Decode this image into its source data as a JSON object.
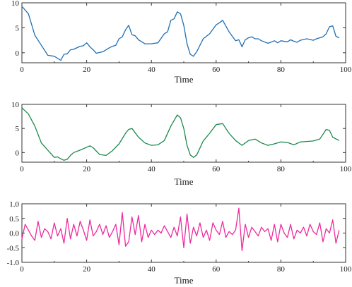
{
  "chart_data": [
    {
      "type": "line",
      "xlabel": "Time",
      "ylabel": "",
      "xlim": [
        0,
        100
      ],
      "ylim": [
        -2,
        10
      ],
      "xticks": [
        0,
        20,
        40,
        60,
        80,
        100
      ],
      "yticks": [
        0,
        5,
        10
      ],
      "x_tick_labels": [
        "0",
        "20",
        "40",
        "60",
        "80",
        "100"
      ],
      "y_tick_labels": [
        "0",
        "5",
        "10"
      ],
      "grid": false,
      "series": [
        {
          "color": "#1f6fb4",
          "x": [
            0,
            2,
            4,
            6,
            8,
            10,
            12,
            13,
            14,
            15,
            16,
            18,
            19,
            20,
            21,
            22,
            23,
            25,
            27,
            28,
            29,
            30,
            31,
            32,
            33,
            34,
            35,
            36,
            38,
            40,
            41,
            42,
            44,
            45,
            46,
            47,
            48,
            49,
            50,
            51,
            52,
            53,
            54,
            56,
            58,
            60,
            61,
            62,
            64,
            65,
            66,
            67,
            68,
            69,
            70,
            71,
            72,
            73,
            74,
            76,
            78,
            79,
            80,
            82,
            83,
            84,
            85,
            86,
            88,
            90,
            91,
            92,
            93,
            94,
            95,
            96,
            97,
            98
          ],
          "y": [
            9.3,
            7.8,
            3.5,
            1.5,
            -0.5,
            -0.7,
            -1.5,
            -0.3,
            -0.2,
            0.6,
            0.7,
            1.3,
            1.4,
            2.0,
            1.2,
            0.6,
            -0.1,
            0.2,
            1.0,
            1.3,
            1.5,
            2.8,
            3.2,
            4.6,
            5.5,
            3.6,
            3.4,
            2.6,
            1.8,
            1.8,
            1.9,
            2.0,
            3.8,
            4.2,
            6.5,
            6.8,
            8.2,
            7.8,
            5.5,
            1.8,
            -0.3,
            -0.7,
            0.2,
            2.8,
            3.8,
            5.6,
            6.0,
            6.5,
            4.2,
            3.3,
            2.4,
            2.6,
            1.2,
            2.6,
            3.0,
            3.2,
            2.8,
            2.8,
            2.4,
            1.9,
            2.4,
            2.0,
            2.4,
            2.2,
            2.6,
            2.3,
            2.1,
            2.5,
            2.8,
            2.5,
            2.8,
            3.0,
            3.2,
            3.8,
            5.2,
            5.4,
            3.3,
            3.0
          ]
        }
      ]
    },
    {
      "type": "line",
      "xlabel": "Time",
      "ylabel": "",
      "xlim": [
        0,
        100
      ],
      "ylim": [
        -2,
        10
      ],
      "xticks": [
        0,
        20,
        40,
        60,
        80,
        100
      ],
      "yticks": [
        0,
        5,
        10
      ],
      "x_tick_labels": [
        "0",
        "20",
        "40",
        "60",
        "80",
        "100"
      ],
      "y_tick_labels": [
        "0",
        "5",
        "10"
      ],
      "grid": false,
      "series": [
        {
          "color": "#1b8a4e",
          "x": [
            0,
            2,
            4,
            6,
            8,
            10,
            11,
            12,
            13,
            14,
            15,
            16,
            18,
            20,
            21,
            22,
            24,
            26,
            28,
            30,
            32,
            33,
            34,
            36,
            38,
            40,
            42,
            44,
            46,
            48,
            49,
            50,
            51,
            52,
            53,
            54,
            56,
            58,
            60,
            62,
            64,
            66,
            68,
            70,
            72,
            74,
            76,
            78,
            80,
            82,
            84,
            86,
            88,
            90,
            92,
            94,
            95,
            96,
            98
          ],
          "y": [
            9.3,
            8.0,
            5.5,
            2.0,
            0.5,
            -1.0,
            -0.9,
            -1.3,
            -1.6,
            -1.4,
            -0.6,
            0.0,
            0.5,
            1.1,
            1.4,
            1.0,
            -0.4,
            -0.6,
            0.4,
            1.8,
            4.0,
            4.8,
            5.0,
            3.2,
            2.0,
            1.5,
            1.6,
            2.5,
            5.5,
            7.8,
            7.2,
            5.0,
            1.5,
            -0.5,
            -1.0,
            -0.5,
            2.4,
            4.0,
            5.8,
            6.0,
            4.0,
            2.5,
            1.5,
            2.5,
            2.8,
            2.0,
            1.5,
            1.8,
            2.2,
            2.1,
            1.6,
            2.2,
            2.3,
            2.4,
            2.8,
            4.8,
            4.6,
            3.2,
            2.5
          ]
        }
      ]
    },
    {
      "type": "line",
      "xlabel": "Time",
      "ylabel": "",
      "xlim": [
        0,
        100
      ],
      "ylim": [
        -1.0,
        1.0
      ],
      "xticks": [
        0,
        20,
        40,
        60,
        80,
        100
      ],
      "yticks": [
        -1.0,
        -0.5,
        0.0,
        0.5,
        1.0
      ],
      "x_tick_labels": [
        "0",
        "20",
        "40",
        "60",
        "80",
        "100"
      ],
      "y_tick_labels": [
        "-1.0",
        "-0.5",
        "0.0",
        "0.5",
        "1.0"
      ],
      "grid": false,
      "series": [
        {
          "color": "#ee2a9e",
          "x": [
            0,
            1,
            2,
            3,
            4,
            5,
            6,
            7,
            8,
            9,
            10,
            11,
            12,
            13,
            14,
            15,
            16,
            17,
            18,
            19,
            20,
            21,
            22,
            23,
            24,
            25,
            26,
            27,
            28,
            29,
            30,
            31,
            32,
            33,
            34,
            35,
            36,
            37,
            38,
            39,
            40,
            41,
            42,
            43,
            44,
            45,
            46,
            47,
            48,
            49,
            50,
            51,
            52,
            53,
            54,
            55,
            56,
            57,
            58,
            59,
            60,
            61,
            62,
            63,
            64,
            65,
            66,
            67,
            68,
            69,
            70,
            71,
            72,
            73,
            74,
            75,
            76,
            77,
            78,
            79,
            80,
            81,
            82,
            83,
            84,
            85,
            86,
            87,
            88,
            89,
            90,
            91,
            92,
            93,
            94,
            95,
            96,
            97,
            98
          ],
          "y": [
            -0.2,
            0.3,
            0.1,
            -0.1,
            -0.25,
            0.4,
            -0.15,
            0.15,
            0.05,
            -0.2,
            0.35,
            -0.1,
            0.15,
            -0.35,
            0.5,
            -0.2,
            0.3,
            -0.1,
            0.4,
            0.1,
            -0.25,
            0.45,
            -0.1,
            0.05,
            0.3,
            -0.05,
            0.25,
            -0.15,
            0.05,
            0.3,
            -0.4,
            0.7,
            -0.45,
            -0.3,
            0.55,
            -0.05,
            0.6,
            -0.3,
            0.3,
            -0.15,
            0.1,
            -0.05,
            0.1,
            0.0,
            0.25,
            0.05,
            -0.15,
            0.2,
            -0.1,
            0.55,
            -0.5,
            0.65,
            -0.35,
            0.2,
            -0.1,
            0.35,
            -0.15,
            0.1,
            -0.25,
            0.35,
            0.1,
            -0.05,
            0.4,
            -0.15,
            0.05,
            -0.05,
            0.1,
            0.85,
            -0.6,
            0.3,
            -0.15,
            0.2,
            0.05,
            -0.1,
            0.2,
            0.05,
            0.15,
            -0.25,
            0.3,
            -0.3,
            0.3,
            0.0,
            -0.15,
            0.3,
            -0.2,
            0.1,
            0.0,
            0.2,
            -0.1,
            0.3,
            0.05,
            -0.05,
            0.35,
            -0.3,
            0.15,
            0.0,
            0.45,
            -0.35,
            0.1
          ]
        }
      ]
    }
  ]
}
